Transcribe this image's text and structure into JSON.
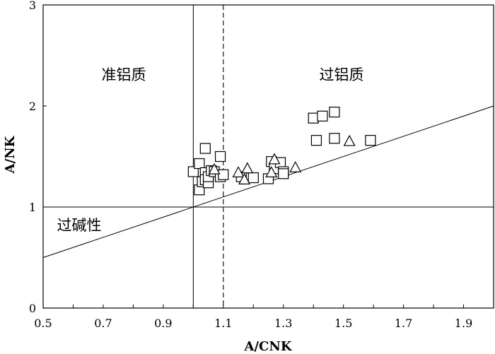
{
  "chart_data": {
    "type": "scatter",
    "xlabel": "A/CNK",
    "ylabel": "A/NK",
    "xlim": [
      0.5,
      2.0
    ],
    "ylim": [
      0,
      3
    ],
    "x_ticks": [
      "0.5",
      "0.7",
      "0.9",
      "1.1",
      "1.3",
      "1.5",
      "1.7",
      "1.9"
    ],
    "y_ticks": [
      "0",
      "1",
      "2",
      "3"
    ],
    "grid": false,
    "legend": "none",
    "region_labels": {
      "metaluminous": "准铝质",
      "peraluminous": "过铝质",
      "peralkaline": "过碱性"
    },
    "reference_lines": {
      "vertical_solid_x": 1.0,
      "vertical_dashed_x": 1.1,
      "horizontal_y": 1.0,
      "diagonal": [
        [
          0.5,
          0.5
        ],
        [
          2.0,
          2.0
        ]
      ]
    },
    "series": [
      {
        "marker": "square",
        "points": [
          [
            1.0,
            1.35
          ],
          [
            1.02,
            1.43
          ],
          [
            1.02,
            1.17
          ],
          [
            1.03,
            1.25
          ],
          [
            1.04,
            1.34
          ],
          [
            1.04,
            1.27
          ],
          [
            1.04,
            1.58
          ],
          [
            1.05,
            1.24
          ],
          [
            1.05,
            1.3
          ],
          [
            1.06,
            1.36
          ],
          [
            1.07,
            1.35
          ],
          [
            1.09,
            1.3
          ],
          [
            1.09,
            1.5
          ],
          [
            1.1,
            1.32
          ],
          [
            1.16,
            1.3
          ],
          [
            1.2,
            1.29
          ],
          [
            1.25,
            1.28
          ],
          [
            1.26,
            1.45
          ],
          [
            1.27,
            1.38
          ],
          [
            1.29,
            1.44
          ],
          [
            1.3,
            1.35
          ],
          [
            1.3,
            1.33
          ],
          [
            1.4,
            1.88
          ],
          [
            1.41,
            1.66
          ],
          [
            1.43,
            1.9
          ],
          [
            1.47,
            1.94
          ],
          [
            1.47,
            1.68
          ],
          [
            1.59,
            1.66
          ]
        ]
      },
      {
        "marker": "triangle",
        "points": [
          [
            1.07,
            1.37
          ],
          [
            1.15,
            1.34
          ],
          [
            1.17,
            1.27
          ],
          [
            1.18,
            1.38
          ],
          [
            1.26,
            1.34
          ],
          [
            1.27,
            1.47
          ],
          [
            1.34,
            1.39
          ],
          [
            1.52,
            1.65
          ]
        ]
      }
    ]
  }
}
